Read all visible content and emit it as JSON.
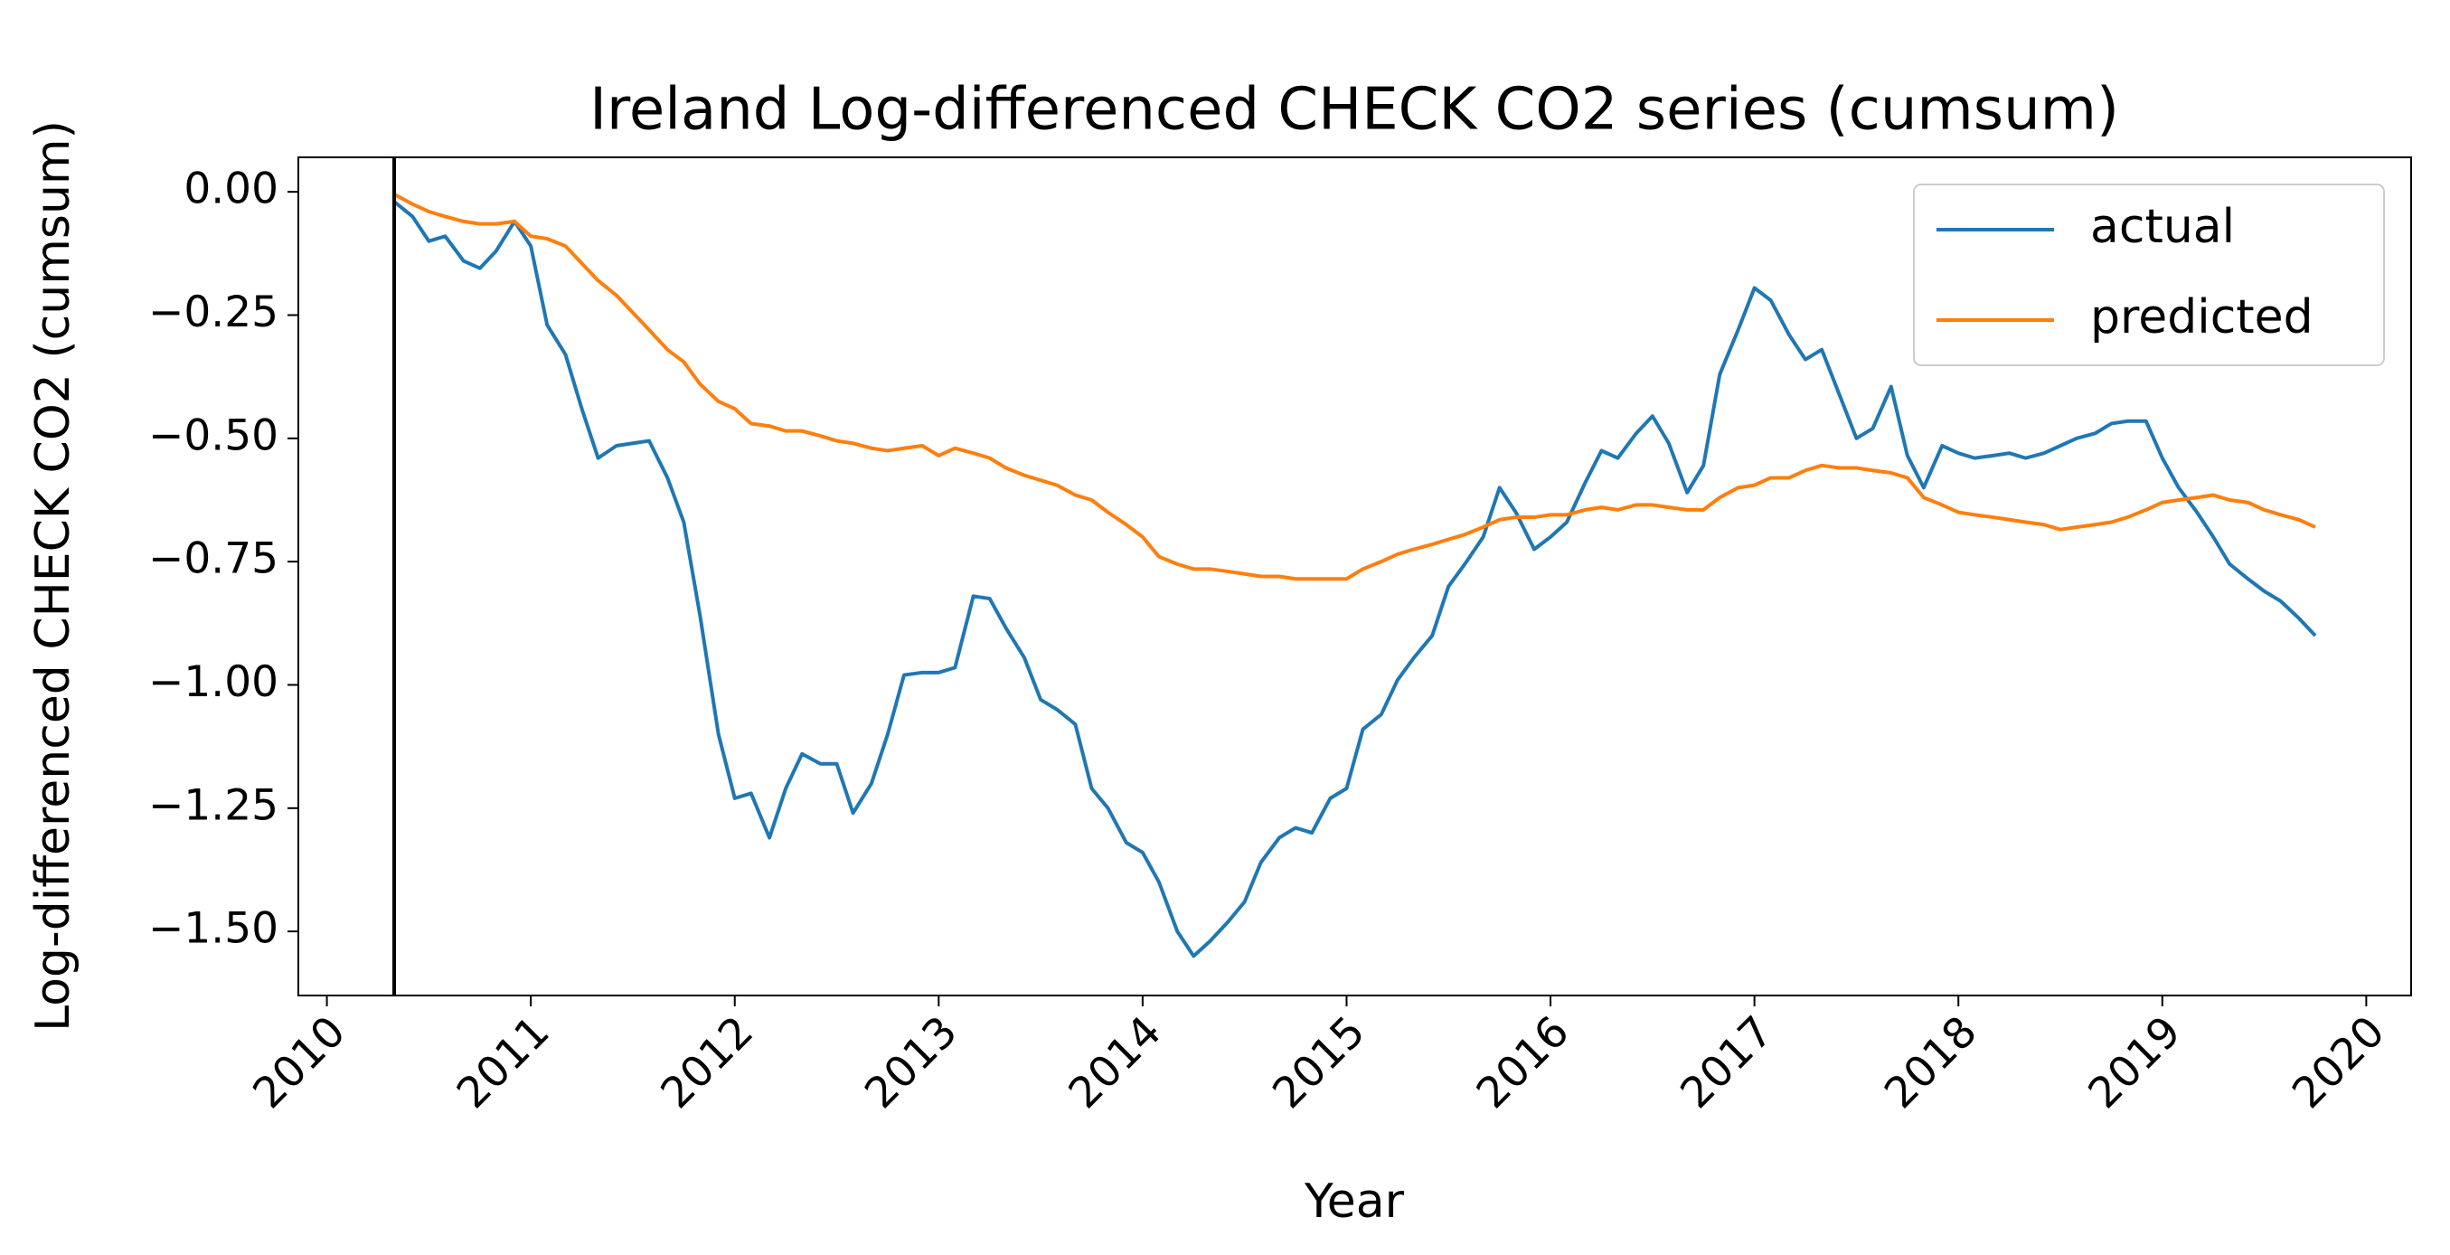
{
  "chart_data": {
    "type": "line",
    "title": "Ireland Log-differenced CHECK CO2 series (cumsum)",
    "x_label": "Year",
    "y_label": "Log-differenced CHECK CO2 (cumsum)",
    "x": [
      2010.33,
      2010.42,
      2010.5,
      2010.58,
      2010.67,
      2010.75,
      2010.83,
      2010.92,
      2011,
      2011.08,
      2011.17,
      2011.25,
      2011.33,
      2011.42,
      2011.5,
      2011.58,
      2011.67,
      2011.75,
      2011.83,
      2011.92,
      2012,
      2012.08,
      2012.17,
      2012.25,
      2012.33,
      2012.42,
      2012.5,
      2012.58,
      2012.67,
      2012.75,
      2012.83,
      2012.92,
      2013,
      2013.08,
      2013.17,
      2013.25,
      2013.33,
      2013.42,
      2013.5,
      2013.58,
      2013.67,
      2013.75,
      2013.83,
      2013.92,
      2014,
      2014.08,
      2014.17,
      2014.25,
      2014.33,
      2014.42,
      2014.5,
      2014.58,
      2014.67,
      2014.75,
      2014.83,
      2014.92,
      2015,
      2015.08,
      2015.17,
      2015.25,
      2015.33,
      2015.42,
      2015.5,
      2015.58,
      2015.67,
      2015.75,
      2015.83,
      2015.92,
      2016,
      2016.08,
      2016.17,
      2016.25,
      2016.33,
      2016.42,
      2016.5,
      2016.58,
      2016.67,
      2016.75,
      2016.83,
      2016.92,
      2017,
      2017.08,
      2017.17,
      2017.25,
      2017.33,
      2017.42,
      2017.5,
      2017.58,
      2017.67,
      2017.75,
      2017.83,
      2017.92,
      2018,
      2018.08,
      2018.17,
      2018.25,
      2018.33,
      2018.42,
      2018.5,
      2018.58,
      2018.67,
      2018.75,
      2018.83,
      2018.92,
      2019,
      2019.08,
      2019.17,
      2019.25,
      2019.33,
      2019.42,
      2019.5,
      2019.58,
      2019.67,
      2019.75
    ],
    "series": [
      {
        "name": "actual",
        "color": "#1f77b4",
        "values": [
          -0.02,
          -0.05,
          -0.1,
          -0.09,
          -0.14,
          -0.155,
          -0.12,
          -0.06,
          -0.11,
          -0.27,
          -0.33,
          -0.44,
          -0.54,
          -0.515,
          -0.51,
          -0.505,
          -0.58,
          -0.67,
          -0.86,
          -1.1,
          -1.23,
          -1.22,
          -1.31,
          -1.21,
          -1.14,
          -1.16,
          -1.16,
          -1.26,
          -1.2,
          -1.1,
          -0.98,
          -0.975,
          -0.975,
          -0.965,
          -0.82,
          -0.825,
          -0.885,
          -0.945,
          -1.03,
          -1.05,
          -1.08,
          -1.21,
          -1.25,
          -1.32,
          -1.34,
          -1.4,
          -1.5,
          -1.55,
          -1.52,
          -1.48,
          -1.44,
          -1.36,
          -1.31,
          -1.29,
          -1.3,
          -1.23,
          -1.21,
          -1.09,
          -1.06,
          -0.99,
          -0.945,
          -0.9,
          -0.8,
          -0.755,
          -0.7,
          -0.6,
          -0.65,
          -0.725,
          -0.7,
          -0.67,
          -0.59,
          -0.525,
          -0.54,
          -0.49,
          -0.455,
          -0.51,
          -0.61,
          -0.555,
          -0.37,
          -0.28,
          -0.195,
          -0.22,
          -0.29,
          -0.34,
          -0.32,
          -0.415,
          -0.5,
          -0.48,
          -0.395,
          -0.535,
          -0.6,
          -0.515,
          -0.53,
          -0.54,
          -0.535,
          -0.53,
          -0.54,
          -0.53,
          -0.515,
          -0.5,
          -0.49,
          -0.47,
          -0.465,
          -0.465,
          -0.54,
          -0.6,
          -0.65,
          -0.7,
          -0.755,
          -0.785,
          -0.81,
          -0.83,
          -0.865,
          -0.9
        ]
      },
      {
        "name": "predicted",
        "color": "#ff7f0e",
        "values": [
          -0.005,
          -0.025,
          -0.04,
          -0.05,
          -0.06,
          -0.065,
          -0.065,
          -0.06,
          -0.09,
          -0.095,
          -0.11,
          -0.145,
          -0.18,
          -0.21,
          -0.245,
          -0.28,
          -0.32,
          -0.345,
          -0.39,
          -0.425,
          -0.44,
          -0.47,
          -0.475,
          -0.485,
          -0.485,
          -0.495,
          -0.505,
          -0.51,
          -0.52,
          -0.525,
          -0.52,
          -0.515,
          -0.535,
          -0.52,
          -0.53,
          -0.54,
          -0.56,
          -0.575,
          -0.585,
          -0.595,
          -0.615,
          -0.625,
          -0.65,
          -0.675,
          -0.7,
          -0.74,
          -0.755,
          -0.765,
          -0.765,
          -0.77,
          -0.775,
          -0.78,
          -0.78,
          -0.785,
          -0.785,
          -0.785,
          -0.785,
          -0.765,
          -0.75,
          -0.735,
          -0.725,
          -0.715,
          -0.705,
          -0.695,
          -0.68,
          -0.665,
          -0.66,
          -0.66,
          -0.655,
          -0.655,
          -0.645,
          -0.64,
          -0.645,
          -0.635,
          -0.635,
          -0.64,
          -0.645,
          -0.645,
          -0.62,
          -0.6,
          -0.595,
          -0.58,
          -0.58,
          -0.565,
          -0.555,
          -0.56,
          -0.56,
          -0.565,
          -0.57,
          -0.58,
          -0.62,
          -0.635,
          -0.65,
          -0.655,
          -0.66,
          -0.665,
          -0.67,
          -0.675,
          -0.685,
          -0.68,
          -0.675,
          -0.67,
          -0.66,
          -0.645,
          -0.63,
          -0.625,
          -0.62,
          -0.615,
          -0.625,
          -0.63,
          -0.645,
          -0.655,
          -0.665,
          -0.68
        ]
      }
    ],
    "vline_x": 2010.33,
    "vline_color": "#000000",
    "xlim": [
      2009.86,
      2020.22
    ],
    "xticks": [
      2010,
      2011,
      2012,
      2013,
      2014,
      2015,
      2016,
      2017,
      2018,
      2019,
      2020
    ],
    "ylim": [
      -1.63,
      0.07
    ],
    "yticks": [
      {
        "value": 0,
        "label": "0.00"
      },
      {
        "value": -0.25,
        "label": "−0.25"
      },
      {
        "value": -0.5,
        "label": "−0.50"
      },
      {
        "value": -0.75,
        "label": "−0.75"
      },
      {
        "value": -1,
        "label": "−1.00"
      },
      {
        "value": -1.25,
        "label": "−1.25"
      },
      {
        "value": -1.5,
        "label": "−1.50"
      }
    ],
    "grid": false,
    "legend": "upper-right"
  }
}
